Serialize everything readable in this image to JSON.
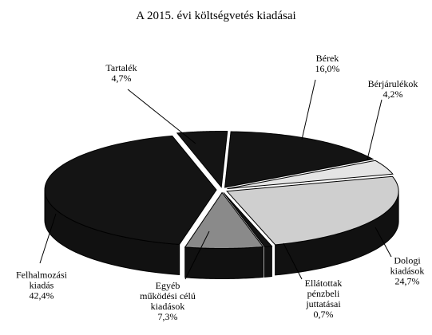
{
  "chart_data": {
    "type": "pie3d",
    "title": "A 2015. évi költségvetés kiadásai",
    "categories": [
      "Bérek",
      "Bérjárulékok",
      "Dologi\nkiadások",
      "Ellátottak\npénzbeli\njuttatásai",
      "Egyéb\nműködési célú\nkiadások",
      "Felhalmozási\nkiadás",
      "Tartalék"
    ],
    "values": [
      16.0,
      4.2,
      24.7,
      0.7,
      7.3,
      42.4,
      4.7
    ],
    "value_labels": [
      "16,0%",
      "4,2%",
      "24,7%",
      "0,7%",
      "7,3%",
      "42,4%",
      "4,7%"
    ],
    "colors": [
      "#141414",
      "#e4e4e4",
      "#cfcfcf",
      "#141414",
      "#8a8a8a",
      "#141414",
      "#141414"
    ]
  }
}
